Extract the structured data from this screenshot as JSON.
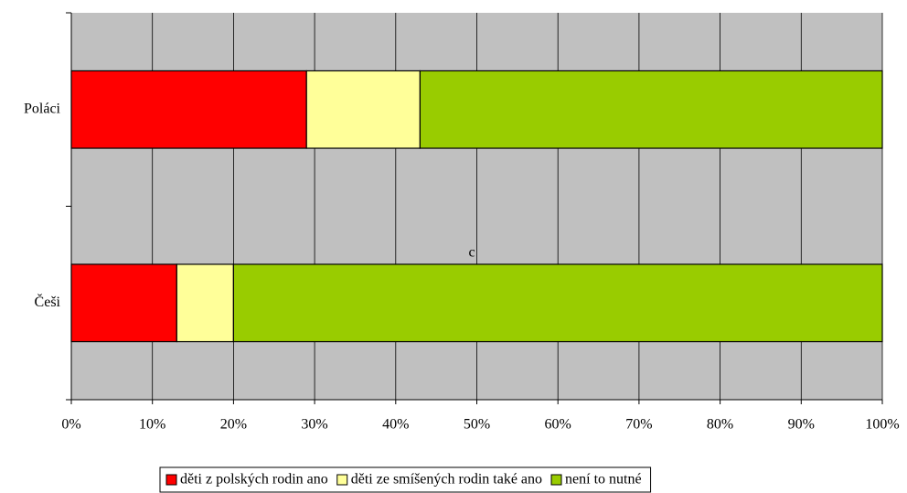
{
  "chart_data": {
    "type": "stacked_bar_horizontal",
    "categories": [
      "Poláci",
      "Češi"
    ],
    "series": [
      {
        "name": "děti z polských rodin ano",
        "color": "#ff0000",
        "values": [
          29,
          13
        ]
      },
      {
        "name": "děti ze smíšených rodin také ano",
        "color": "#ffff99",
        "values": [
          14,
          7
        ]
      },
      {
        "name": "není to nutné",
        "color": "#99cc00",
        "values": [
          57,
          80
        ]
      }
    ],
    "xlim": [
      0,
      100
    ],
    "xticks": [
      {
        "value": 0,
        "label": "0%"
      },
      {
        "value": 10,
        "label": "10%"
      },
      {
        "value": 20,
        "label": "20%"
      },
      {
        "value": 30,
        "label": "30%"
      },
      {
        "value": 40,
        "label": "40%"
      },
      {
        "value": 50,
        "label": "50%"
      },
      {
        "value": 60,
        "label": "60%"
      },
      {
        "value": 70,
        "label": "70%"
      },
      {
        "value": 80,
        "label": "80%"
      },
      {
        "value": 90,
        "label": "90%"
      },
      {
        "value": 100,
        "label": "100%"
      }
    ],
    "grid": true,
    "annotation": "c",
    "legend": "bottom"
  }
}
